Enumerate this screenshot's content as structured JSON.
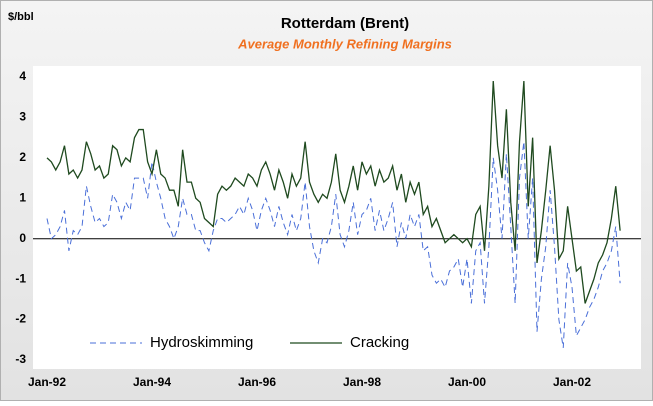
{
  "chart_data": {
    "type": "line",
    "title": "Rotterdam (Brent)",
    "subtitle": "Average Monthly Refining Margins",
    "y_label": "$/bbl",
    "categories": [
      "Jan-92",
      null,
      null,
      null,
      null,
      null,
      null,
      null,
      null,
      null,
      null,
      null,
      null,
      null,
      null,
      null,
      null,
      null,
      null,
      null,
      null,
      null,
      null,
      null,
      "Jan-94",
      null,
      null,
      null,
      null,
      null,
      null,
      null,
      null,
      null,
      null,
      null,
      null,
      null,
      null,
      null,
      null,
      null,
      null,
      null,
      null,
      null,
      null,
      null,
      "Jan-96",
      null,
      null,
      null,
      null,
      null,
      null,
      null,
      null,
      null,
      null,
      null,
      null,
      null,
      null,
      null,
      null,
      null,
      null,
      null,
      null,
      null,
      null,
      null,
      "Jan-98",
      null,
      null,
      null,
      null,
      null,
      null,
      null,
      null,
      null,
      null,
      null,
      null,
      null,
      null,
      null,
      null,
      null,
      null,
      null,
      null,
      null,
      null,
      null,
      "Jan-00",
      null,
      null,
      null,
      null,
      null,
      null,
      null,
      null,
      null,
      null,
      null,
      null,
      null,
      null,
      null,
      null,
      null,
      null,
      null,
      null,
      null,
      null,
      null,
      "Jan-02",
      null,
      null,
      null,
      null,
      null,
      null,
      null,
      null,
      null,
      null,
      null
    ],
    "series": [
      {
        "name": "Hydroskimming",
        "color": "#4a6fd8",
        "line_style": "dashed",
        "values": [
          0.5,
          0.0,
          0.1,
          0.3,
          0.7,
          -0.3,
          0.2,
          0.1,
          0.3,
          1.3,
          0.8,
          0.4,
          0.5,
          0.3,
          0.4,
          1.1,
          0.9,
          0.5,
          0.9,
          0.7,
          1.5,
          1.5,
          1.5,
          1.0,
          1.9,
          1.4,
          1.0,
          0.5,
          0.3,
          0.0,
          0.3,
          1.0,
          0.6,
          0.6,
          0.2,
          0.2,
          -0.1,
          -0.3,
          0.2,
          0.5,
          0.5,
          0.4,
          0.5,
          0.6,
          0.8,
          0.6,
          1.0,
          0.7,
          0.2,
          0.7,
          1.0,
          0.7,
          0.3,
          0.8,
          0.4,
          0.1,
          0.6,
          0.2,
          0.5,
          1.4,
          0.3,
          -0.3,
          -0.6,
          0.0,
          -0.1,
          0.3,
          1.1,
          0.1,
          -0.2,
          0.2,
          0.9,
          0.1,
          0.6,
          0.7,
          1.0,
          0.2,
          0.7,
          0.2,
          0.5,
          0.9,
          -0.2,
          0.4,
          0.0,
          0.6,
          0.3,
          0.6,
          -0.3,
          -0.2,
          -0.9,
          -1.1,
          -1.0,
          -1.2,
          -0.8,
          -0.7,
          -0.5,
          -1.2,
          -0.5,
          -1.6,
          -0.3,
          -0.1,
          -1.6,
          -0.2,
          2.0,
          1.2,
          0.0,
          2.1,
          0.3,
          -1.6,
          1.5,
          2.4,
          0.0,
          1.5,
          -2.3,
          -1.0,
          -0.2,
          1.2,
          -0.2,
          -2.0,
          -2.7,
          -0.6,
          -1.2,
          -2.4,
          -2.2,
          -2.0,
          -1.7,
          -1.5,
          -1.2,
          -0.8,
          -0.6,
          -0.3,
          0.3,
          -1.1
        ]
      },
      {
        "name": "Cracking",
        "color": "#1f4a1f",
        "line_style": "solid",
        "values": [
          2.0,
          1.9,
          1.7,
          1.9,
          2.3,
          1.6,
          1.7,
          1.5,
          1.7,
          2.4,
          2.1,
          1.7,
          1.8,
          1.5,
          1.6,
          2.3,
          2.2,
          1.8,
          2.0,
          1.9,
          2.5,
          2.7,
          2.7,
          1.9,
          1.6,
          2.2,
          1.6,
          1.5,
          1.2,
          1.2,
          0.8,
          2.2,
          1.4,
          1.4,
          1.0,
          0.9,
          0.5,
          0.4,
          0.3,
          1.1,
          1.3,
          1.2,
          1.3,
          1.5,
          1.4,
          1.3,
          1.6,
          1.5,
          1.3,
          1.7,
          1.9,
          1.6,
          1.2,
          1.7,
          1.4,
          1.0,
          1.6,
          1.3,
          1.5,
          2.4,
          1.4,
          1.1,
          0.9,
          1.1,
          1.0,
          1.4,
          2.1,
          1.2,
          0.9,
          1.3,
          1.8,
          1.2,
          1.9,
          1.6,
          1.8,
          1.3,
          1.7,
          1.4,
          1.5,
          1.8,
          1.2,
          1.6,
          0.9,
          1.4,
          1.1,
          1.4,
          0.6,
          0.8,
          0.3,
          0.5,
          0.2,
          -0.1,
          0.0,
          0.1,
          0.0,
          -0.1,
          0.0,
          -0.2,
          0.6,
          0.8,
          -0.3,
          1.3,
          3.9,
          2.3,
          1.5,
          3.2,
          0.9,
          -0.3,
          2.4,
          3.9,
          0.8,
          2.5,
          -0.6,
          0.2,
          1.2,
          2.3,
          1.2,
          -0.5,
          -0.3,
          0.8,
          0.0,
          -0.8,
          -0.7,
          -1.6,
          -1.3,
          -1.0,
          -0.6,
          -0.4,
          -0.1,
          0.5,
          1.3,
          0.2
        ]
      }
    ],
    "ylim": [
      -3,
      4
    ],
    "yticks": [
      -3,
      -2,
      -1,
      0,
      1,
      2,
      3,
      4
    ],
    "legend": "lower left",
    "grid": false
  }
}
